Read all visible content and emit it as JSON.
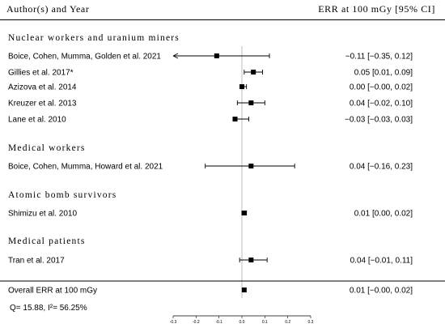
{
  "header": {
    "left": "Author(s) and Year",
    "right": "ERR at 100 mGy [95% CI]"
  },
  "chart_data": {
    "type": "forest",
    "xlim": [
      -0.3,
      0.3
    ],
    "ticks": [
      "-0.3",
      "-0.2",
      "-0.1",
      "0.0",
      "0.1",
      "0.2",
      "0.3"
    ],
    "reference_line": 0,
    "groups": [
      {
        "name": "Nuclear workers and uranium miners",
        "studies": [
          {
            "label": "Boice, Cohen, Mumma, Golden et al. 2021",
            "est": -0.11,
            "lo": -0.35,
            "hi": 0.12,
            "text": "−0.11 [−0.35, 0.12]",
            "arrow_left": true
          },
          {
            "label": "Gillies et al. 2017*",
            "est": 0.05,
            "lo": 0.01,
            "hi": 0.09,
            "text": "0.05 [0.01, 0.09]"
          },
          {
            "label": "Azizova et al. 2014",
            "est": 0.0,
            "lo": -0.0,
            "hi": 0.02,
            "text": "0.00 [−0.00, 0.02]"
          },
          {
            "label": "Kreuzer et al. 2013",
            "est": 0.04,
            "lo": -0.02,
            "hi": 0.1,
            "text": "0.04 [−0.02, 0.10]"
          },
          {
            "label": "Lane et al. 2010",
            "est": -0.03,
            "lo": -0.03,
            "hi": 0.03,
            "text": "−0.03 [−0.03, 0.03]"
          }
        ]
      },
      {
        "name": "Medical workers",
        "studies": [
          {
            "label": "Boice, Cohen, Mumma, Howard et al. 2021",
            "est": 0.04,
            "lo": -0.16,
            "hi": 0.23,
            "text": "0.04 [−0.16, 0.23]"
          }
        ]
      },
      {
        "name": "Atomic bomb survivors",
        "studies": [
          {
            "label": "Shimizu et al. 2010",
            "est": 0.01,
            "lo": 0.0,
            "hi": 0.02,
            "text": "0.01 [0.00, 0.02]"
          }
        ]
      },
      {
        "name": "Medical patients",
        "studies": [
          {
            "label": "Tran et al. 2017",
            "est": 0.04,
            "lo": -0.01,
            "hi": 0.11,
            "text": "0.04 [−0.01, 0.11]"
          }
        ]
      }
    ],
    "overall": {
      "label": "Overall ERR at 100 mGy",
      "est": 0.01,
      "lo": -0.0,
      "hi": 0.02,
      "text": "0.01 [−0.00, 0.02]"
    },
    "heterogeneity": "Q= 15.88, I²= 56.25%"
  }
}
